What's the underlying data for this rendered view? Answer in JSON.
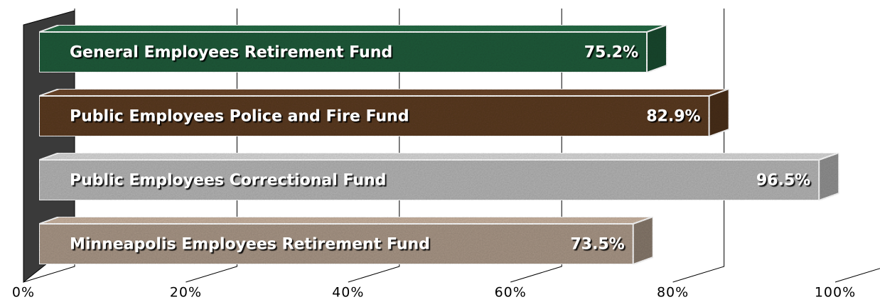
{
  "chart_data": {
    "type": "bar",
    "orientation": "horizontal",
    "categories": [
      "General Employees Retirement Fund",
      "Public Employees Police and Fire Fund",
      "Public Employees Correctional Fund",
      "Minneapolis Employees Retirement Fund"
    ],
    "values": [
      75.2,
      82.9,
      96.5,
      73.5
    ],
    "value_labels": [
      "75.2%",
      "82.9%",
      "96.5%",
      "73.5%"
    ],
    "colors": [
      "#1e5a3a",
      "#5a3a22",
      "#b4b4b4",
      "#a89686"
    ],
    "xlim": [
      0,
      100
    ],
    "xticks": [
      {
        "value": 0,
        "label": "0%"
      },
      {
        "value": 20,
        "label": "20%"
      },
      {
        "value": 40,
        "label": "40%"
      },
      {
        "value": 60,
        "label": "60%"
      },
      {
        "value": 80,
        "label": "80%"
      },
      {
        "value": 100,
        "label": "100%"
      }
    ],
    "grid": true
  }
}
